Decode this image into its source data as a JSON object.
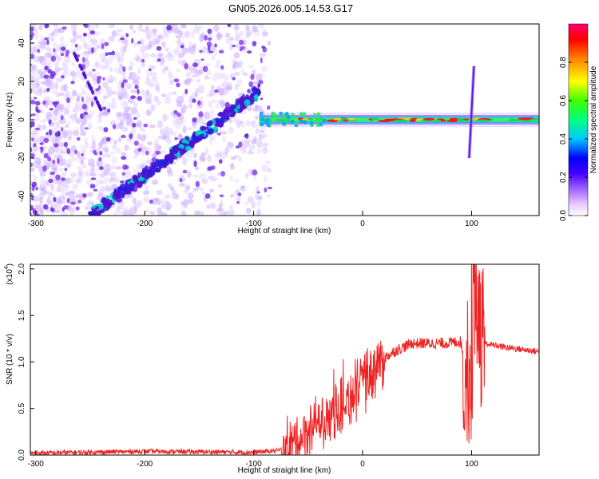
{
  "title": "GN05.2026.005.14.53.G17",
  "chart_data": [
    {
      "type": "heatmap",
      "xlabel": "Height of straight line (km)",
      "ylabel": "Frequency (Hz)",
      "xlim": [
        -305,
        162
      ],
      "ylim": [
        -50,
        50
      ],
      "xticks": [
        -300,
        -200,
        -100,
        0,
        100
      ],
      "yticks": [
        -40,
        -20,
        0,
        20,
        40
      ],
      "colorbar": {
        "label": "Normalized spectral amplitude",
        "ticks": [
          "0.0",
          "0.2",
          "0.4",
          "0.6",
          "0.8"
        ],
        "range": [
          0,
          1
        ],
        "colormap": [
          "#ffffff",
          "#e8c8ff",
          "#8a2be2",
          "#0000ff",
          "#00ffff",
          "#00ff00",
          "#ffff00",
          "#ff8000",
          "#ff0000",
          "#ff00a0"
        ]
      },
      "features": {
        "diagonal_trace": {
          "x": [
            -250,
            -95
          ],
          "y": [
            -50,
            15
          ]
        },
        "carrier_line": {
          "x": [
            -95,
            162
          ],
          "y": [
            0,
            0
          ]
        },
        "spike_near_100": {
          "x": [
            100,
            100
          ],
          "y": [
            -20,
            28
          ]
        }
      }
    },
    {
      "type": "line",
      "xlabel": "Height of straight line (km)",
      "ylabel": "SNR (10 * v/v)",
      "scale_label": "(x10",
      "scale_exp": "4",
      "xlim": [
        -305,
        162
      ],
      "ylim": [
        0,
        2.05
      ],
      "xticks": [
        -300,
        -200,
        -100,
        0,
        100
      ],
      "yticks": [
        "0.0",
        "0.5",
        "1.0",
        "1.5",
        "2.0"
      ],
      "series": [
        {
          "color": "#ee2222",
          "x": [
            -305,
            -200,
            -100,
            -75,
            -60,
            -45,
            -30,
            -15,
            0,
            15,
            30,
            45,
            60,
            75,
            90,
            96,
            100,
            104,
            108,
            112,
            130,
            162
          ],
          "y": [
            0.02,
            0.04,
            0.03,
            0.05,
            0.15,
            0.3,
            0.45,
            0.55,
            0.75,
            1.0,
            1.12,
            1.2,
            1.2,
            1.2,
            1.22,
            0.8,
            1.2,
            1.6,
            1.4,
            1.2,
            1.16,
            1.11
          ]
        }
      ]
    }
  ]
}
